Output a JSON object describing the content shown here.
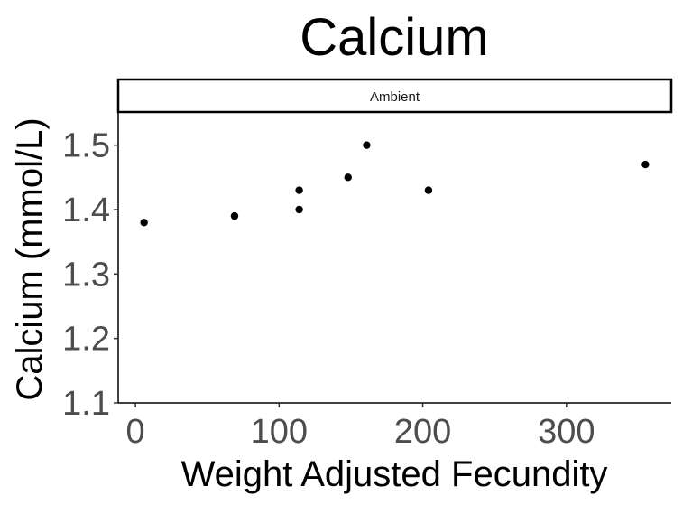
{
  "chart_data": {
    "type": "scatter",
    "title": "Calcium",
    "panel_label": "Ambient",
    "xlabel": "Weight Adjusted Fecundity",
    "ylabel": "Calcium (mmol/L)",
    "xlim": [
      -12,
      373
    ],
    "ylim": [
      1.1,
      1.55
    ],
    "x_ticks": [
      0,
      100,
      200,
      300
    ],
    "y_ticks": [
      1.1,
      1.2,
      1.3,
      1.4,
      1.5
    ],
    "x_tick_labels": [
      "0",
      "100",
      "200",
      "300"
    ],
    "y_tick_labels": [
      "1.1",
      "1.2",
      "1.3",
      "1.4",
      "1.5"
    ],
    "grid": false,
    "point_color": "#000000",
    "points": [
      {
        "x": 6,
        "y": 1.38
      },
      {
        "x": 69,
        "y": 1.39
      },
      {
        "x": 114,
        "y": 1.4
      },
      {
        "x": 114,
        "y": 1.43
      },
      {
        "x": 148,
        "y": 1.45
      },
      {
        "x": 161,
        "y": 1.5
      },
      {
        "x": 204,
        "y": 1.43
      },
      {
        "x": 355,
        "y": 1.47
      }
    ]
  }
}
